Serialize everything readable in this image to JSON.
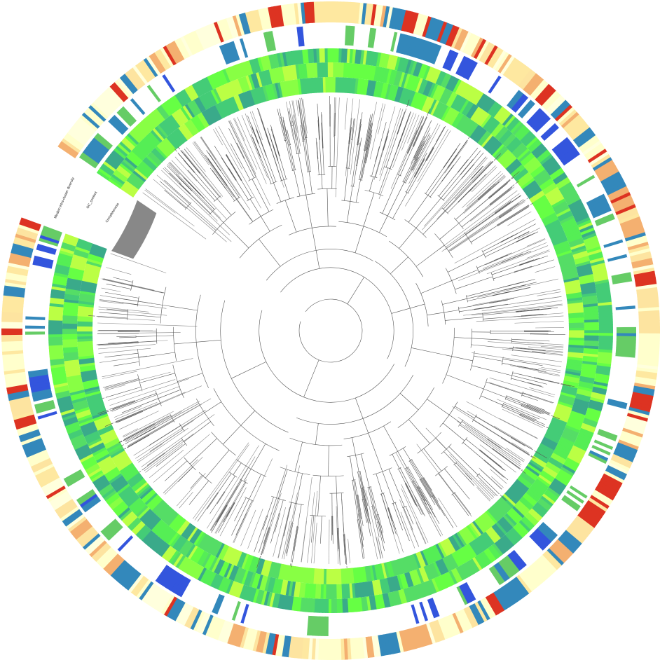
{
  "ring_labels": [
    "Median intra-cluster diversity",
    "GC_content",
    "Completeness"
  ]
}
